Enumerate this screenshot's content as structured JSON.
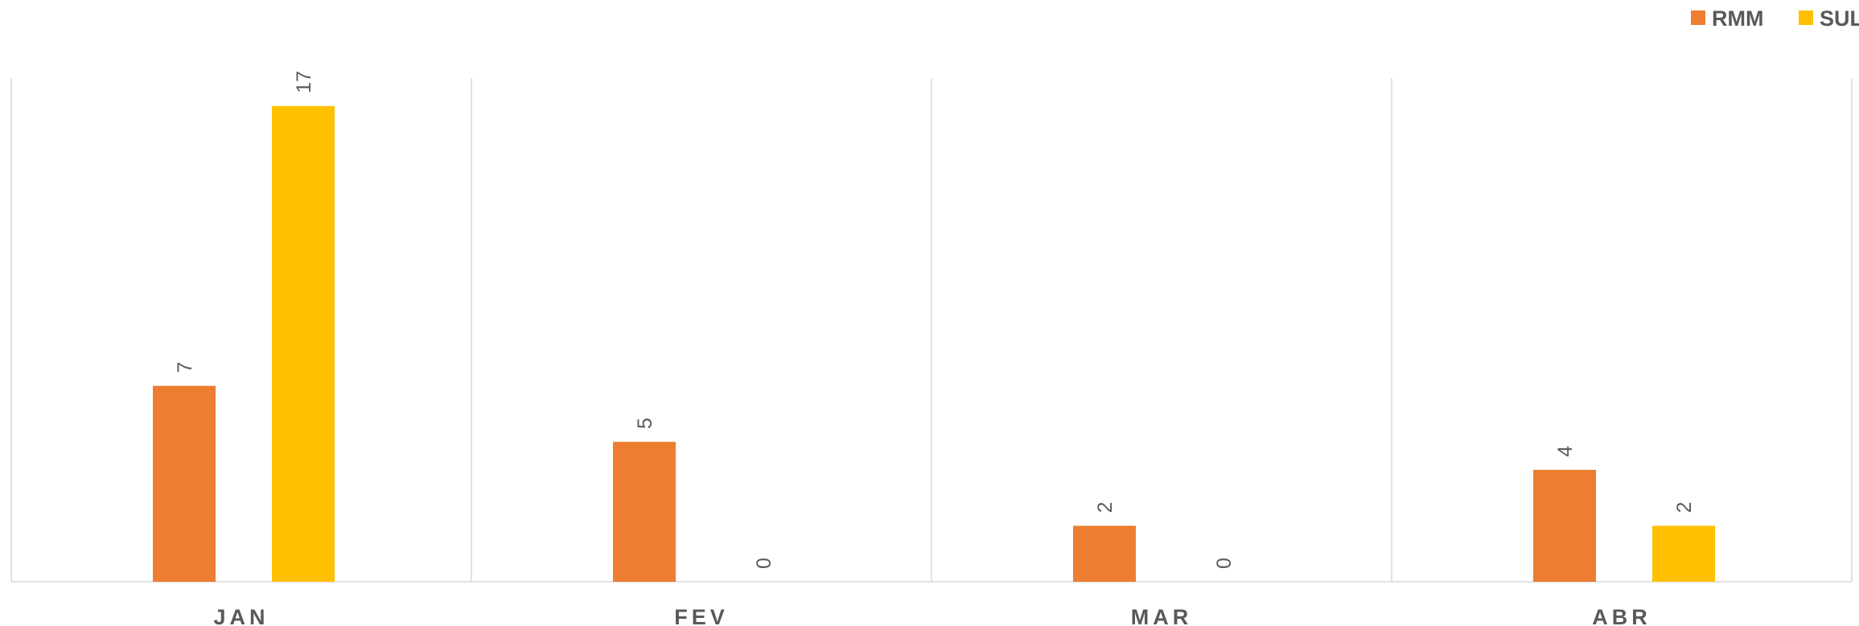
{
  "chart_data": {
    "type": "bar",
    "categories": [
      "JAN",
      "FEV",
      "MAR",
      "ABR"
    ],
    "series": [
      {
        "name": "RMM",
        "values": [
          7,
          5,
          2,
          4
        ],
        "color": "#ED7D31"
      },
      {
        "name": "SUL",
        "values": [
          17,
          0,
          0,
          2
        ],
        "color": "#FFC000"
      }
    ],
    "ylim": [
      0,
      18
    ],
    "grid": "vertical category separators",
    "legend": "top-right",
    "data_labels": true
  }
}
